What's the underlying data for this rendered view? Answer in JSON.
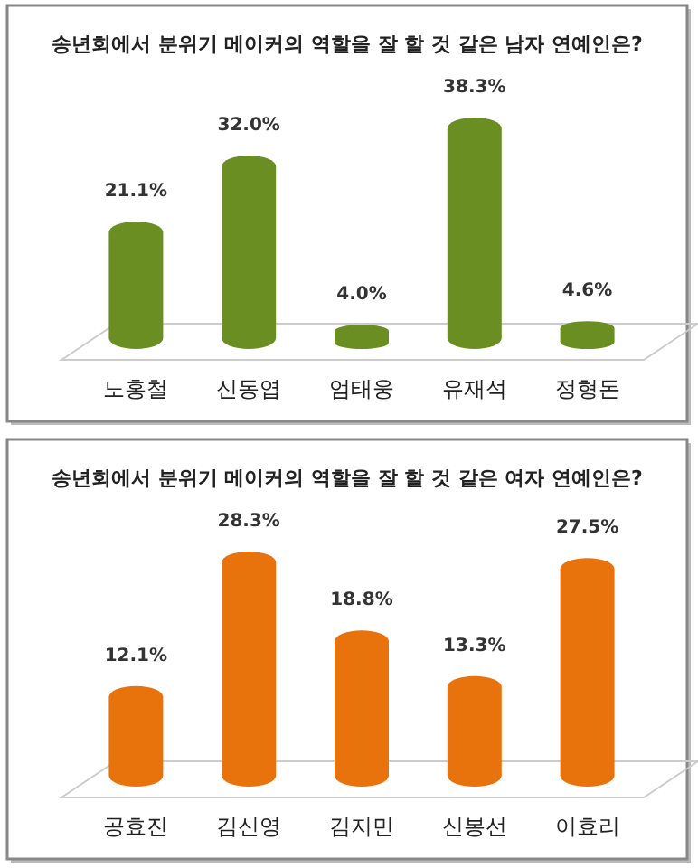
{
  "chart_data": [
    {
      "type": "bar",
      "title": "송년회에서 분위기 메이커의 역할을 잘 할 것 같은 남자 연예인은?",
      "categories": [
        "노홍철",
        "신동엽",
        "엄태웅",
        "유재석",
        "정형돈"
      ],
      "series": [
        {
          "color": "#6b8e23",
          "values": [
            21.1,
            32.0,
            4.0,
            38.3,
            4.6
          ],
          "value_labels": [
            "21.1%",
            "32.0%",
            "4.0%",
            "38.3%",
            "4.6%"
          ]
        }
      ]
    },
    {
      "type": "bar",
      "title": "송년회에서 분위기 메이커의 역할을 잘 할 것 같은 여자 연예인은?",
      "categories": [
        "공효진",
        "김신영",
        "김지민",
        "신봉선",
        "이효리"
      ],
      "series": [
        {
          "color": "#e8720c",
          "values": [
            12.1,
            28.3,
            18.8,
            13.3,
            27.5
          ],
          "value_labels": [
            "12.1%",
            "28.3%",
            "18.8%",
            "13.3%",
            "27.5%"
          ]
        }
      ]
    }
  ]
}
